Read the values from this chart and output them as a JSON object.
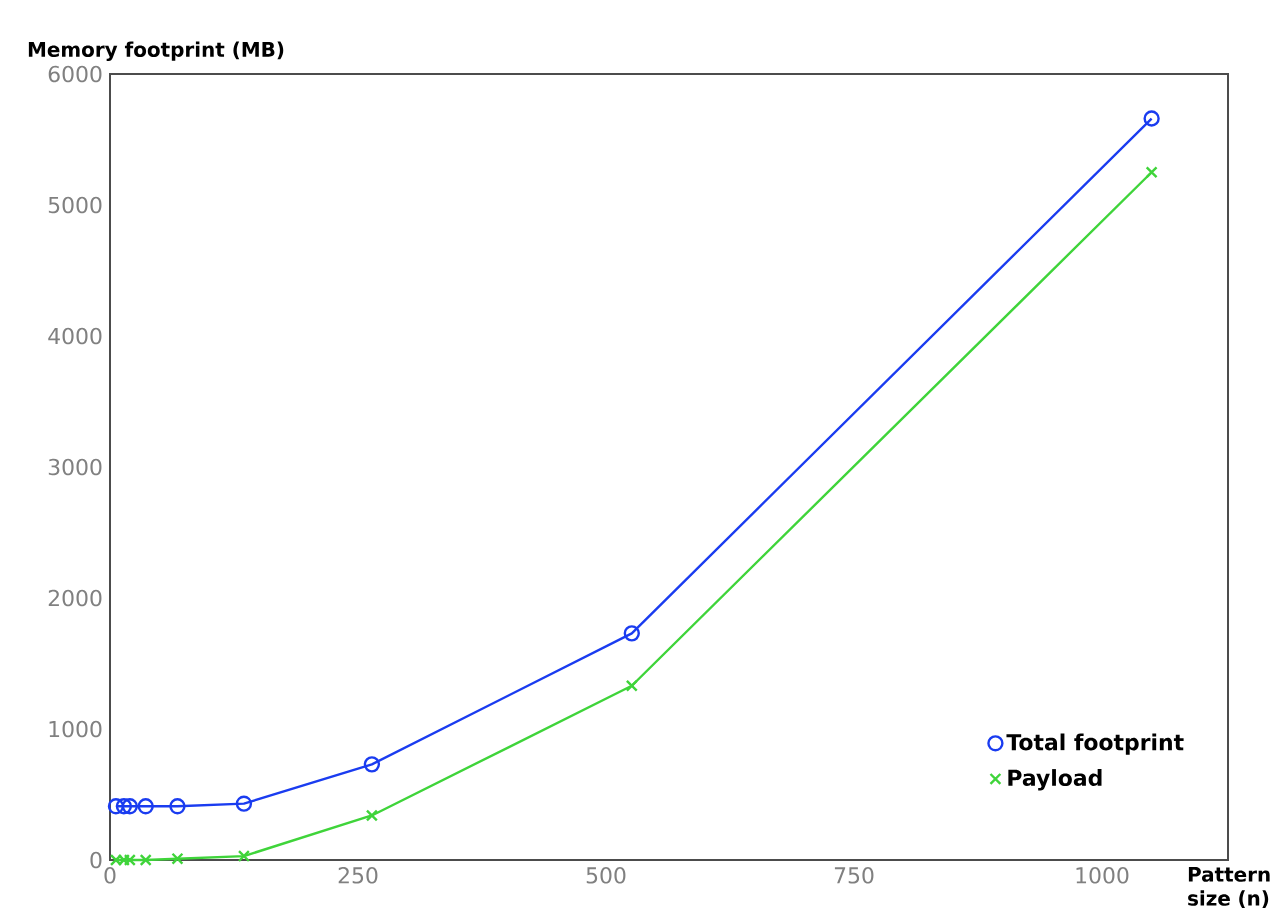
{
  "chart_data": {
    "type": "line",
    "xlabel": "Pattern size (n)",
    "ylabel": "Memory footprint (MB)",
    "x": [
      6,
      14,
      20,
      36,
      68,
      135,
      264,
      526,
      1050
    ],
    "series": [
      {
        "name": "Total footprint",
        "color": "#1a3cf0",
        "marker": "circle",
        "values": [
          410,
          410,
          410,
          410,
          410,
          430,
          730,
          1730,
          5660
        ]
      },
      {
        "name": "Payload",
        "color": "#3fd43a",
        "marker": "cross",
        "values": [
          0,
          0,
          0,
          0,
          10,
          30,
          340,
          1330,
          5250
        ]
      }
    ],
    "xlim": [
      0,
      1127
    ],
    "ylim": [
      0,
      6000
    ],
    "xticks": [
      0,
      250,
      500,
      750,
      1000
    ],
    "yticks": [
      0,
      1000,
      2000,
      3000,
      4000,
      5000,
      6000
    ],
    "grid": false,
    "legend": "bottom right",
    "line_style": "solid"
  }
}
